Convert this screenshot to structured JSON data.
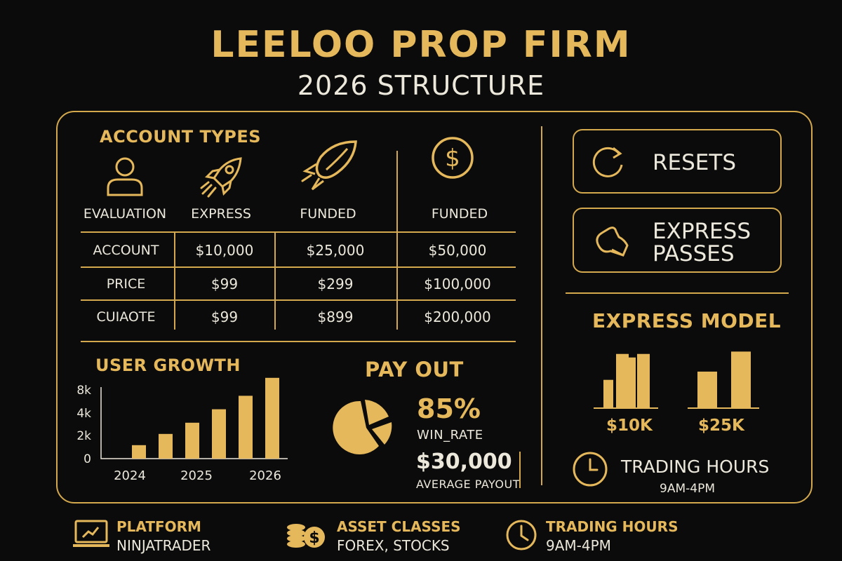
{
  "header": {
    "title": "LEELOO PROP FIRM",
    "subtitle": "2026 STRUCTURE"
  },
  "account_types": {
    "section_title": "ACCOUNT TYPES",
    "types": [
      {
        "label": "EVALUATION",
        "icon": "user-icon"
      },
      {
        "label": "EXPRESS",
        "icon": "rocket-icon"
      },
      {
        "label": "FUNDED",
        "icon": "leaf-rocket-icon"
      },
      {
        "label": "FUNDED",
        "icon": "dollar-coin-icon"
      }
    ],
    "table": {
      "rows": [
        {
          "label": "ACCOUNT",
          "values": [
            "$10,000",
            "$25,000",
            "$50,000"
          ]
        },
        {
          "label": "PRICE",
          "values": [
            "$99",
            "$299",
            "$100,000"
          ]
        },
        {
          "label": "CUIAOTE",
          "values": [
            "$99",
            "$899",
            "$200,000"
          ]
        }
      ]
    }
  },
  "sidebar": {
    "resets_label": "RESETS",
    "express_passes_label_1": "EXPRESS",
    "express_passes_label_2": "PASSES"
  },
  "express_model": {
    "title": "EXPRESS MODEL",
    "groups": [
      {
        "label": "$10K",
        "relative_heights": [
          0.48,
          0.92,
          0.86,
          0.92
        ]
      },
      {
        "label": "$25K",
        "relative_heights": [
          0.62,
          0.96
        ]
      }
    ]
  },
  "trading_hours_inner": {
    "title": "TRADING HOURS",
    "value": "9AM-4PM"
  },
  "user_growth": {
    "title": "USER GROWTH"
  },
  "payout": {
    "title": "PAY OUT",
    "win_rate_value": "85%",
    "win_rate_label": "WIN_RATE",
    "average_value": "$30,000",
    "average_label": "AVERAGE PAYOUT"
  },
  "footer": {
    "platform_title": "PLATFORM",
    "platform_value": "NINJATRADER",
    "assets_title": "ASSET CLASSES",
    "assets_value": "FOREX, STOCKS",
    "hours_title": "TRADING HOURS",
    "hours_value": "9AM-4PM"
  },
  "colors": {
    "gold": "#e5b85c",
    "background": "#0b0b0b",
    "text": "#ece8dc"
  },
  "chart_data": {
    "type": "bar",
    "title": "USER GROWTH",
    "x_tick_labels": [
      "2024",
      "2025",
      "2026"
    ],
    "y_tick_labels": [
      "0",
      "2k",
      "4k",
      "8k"
    ],
    "values": [
      1.2,
      2.2,
      3.2,
      4.4,
      5.6,
      7.2
    ],
    "ylim": [
      0,
      8
    ],
    "grid": false
  }
}
